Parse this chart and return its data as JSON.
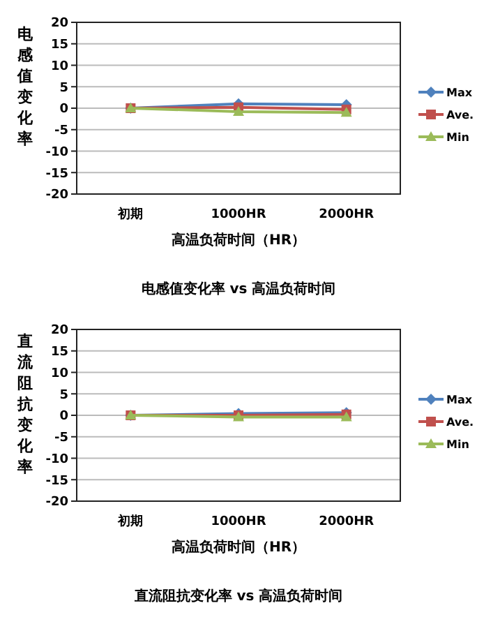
{
  "chart_data": [
    {
      "type": "line",
      "title": "电感值变化率 vs 高温负荷时间",
      "xlabel": "高温负荷时间（HR）",
      "ylabel": "电感值变化率",
      "categories": [
        "初期",
        "1000HR",
        "2000HR"
      ],
      "ylim": [
        -20,
        20
      ],
      "yticks": [
        -20,
        -15,
        -10,
        -5,
        0,
        5,
        10,
        15,
        20
      ],
      "grid": "y",
      "legend": "right",
      "series": [
        {
          "name": "Max",
          "color": "#4f81bd",
          "marker": "diamond",
          "values": [
            0,
            1,
            0.8
          ]
        },
        {
          "name": "Ave.",
          "color": "#c0504d",
          "marker": "square",
          "values": [
            0,
            0.2,
            -0.3
          ]
        },
        {
          "name": "Min",
          "color": "#9bbb59",
          "marker": "triangle",
          "values": [
            0,
            -0.8,
            -1
          ]
        }
      ]
    },
    {
      "type": "line",
      "title": "直流阻抗变化率 vs 高温负荷时间",
      "xlabel": "高温负荷时间（HR）",
      "ylabel": "直流阻抗变化率",
      "categories": [
        "初期",
        "1000HR",
        "2000HR"
      ],
      "ylim": [
        -20,
        20
      ],
      "yticks": [
        -20,
        -15,
        -10,
        -5,
        0,
        5,
        10,
        15,
        20
      ],
      "grid": "y",
      "legend": "right",
      "series": [
        {
          "name": "Max",
          "color": "#4f81bd",
          "marker": "diamond",
          "values": [
            0,
            0.4,
            0.6
          ]
        },
        {
          "name": "Ave.",
          "color": "#c0504d",
          "marker": "square",
          "values": [
            0,
            0,
            0.2
          ]
        },
        {
          "name": "Min",
          "color": "#9bbb59",
          "marker": "triangle",
          "values": [
            0,
            -0.4,
            -0.4
          ]
        }
      ]
    }
  ]
}
